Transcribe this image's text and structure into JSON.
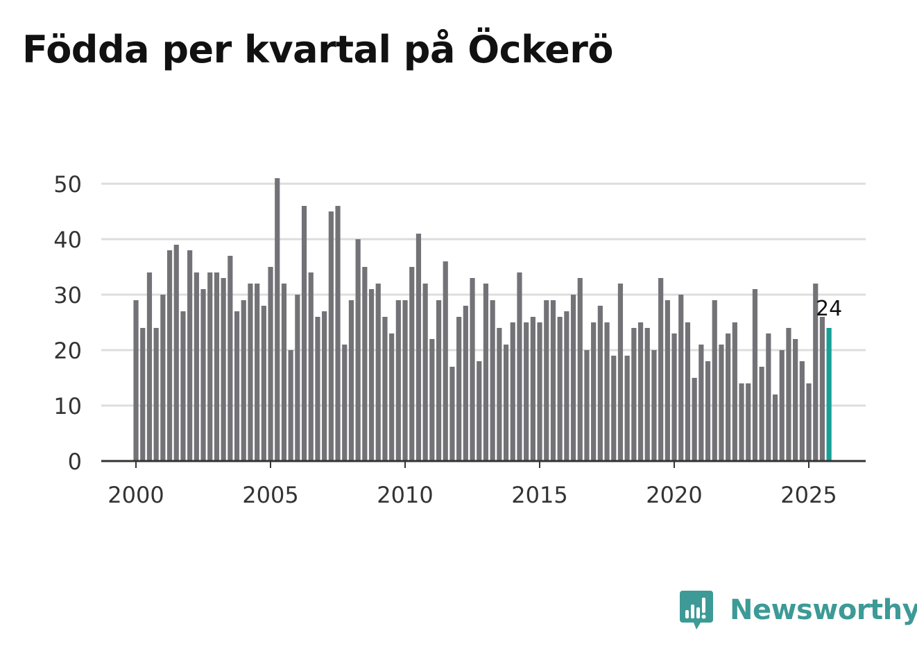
{
  "chart_data": {
    "type": "bar",
    "title": "Födda per kvartal på Öckerö",
    "xlabel": "",
    "ylabel": "",
    "ylim": [
      0,
      52
    ],
    "yticks": [
      0,
      10,
      20,
      30,
      40,
      50
    ],
    "xticks": [
      2000,
      2005,
      2010,
      2015,
      2020,
      2025
    ],
    "x_start": 2000,
    "periods_per_year": 4,
    "values": [
      29,
      24,
      34,
      24,
      30,
      38,
      39,
      27,
      38,
      34,
      31,
      34,
      34,
      33,
      37,
      27,
      29,
      32,
      32,
      28,
      35,
      51,
      32,
      20,
      30,
      46,
      34,
      26,
      27,
      45,
      46,
      21,
      29,
      40,
      35,
      31,
      32,
      26,
      23,
      29,
      29,
      35,
      41,
      32,
      22,
      29,
      36,
      17,
      26,
      28,
      33,
      18,
      32,
      29,
      24,
      21,
      25,
      34,
      25,
      26,
      25,
      29,
      29,
      26,
      27,
      30,
      33,
      20,
      25,
      28,
      25,
      19,
      32,
      19,
      24,
      25,
      24,
      20,
      33,
      29,
      23,
      30,
      25,
      15,
      21,
      18,
      29,
      21,
      23,
      25,
      14,
      14,
      31,
      17,
      23,
      12,
      20,
      24,
      22,
      18,
      14,
      32,
      26,
      24
    ],
    "highlight_index": 103,
    "highlight_label": "24",
    "colors": {
      "bar": "#737277",
      "highlight": "#16a096",
      "grid": "#dddddd",
      "axis": "#333333"
    }
  },
  "brand": {
    "name": "Newsworthy",
    "logo_icon": "bar-chart-speech-bubble-icon",
    "color": "#3d9a96"
  }
}
